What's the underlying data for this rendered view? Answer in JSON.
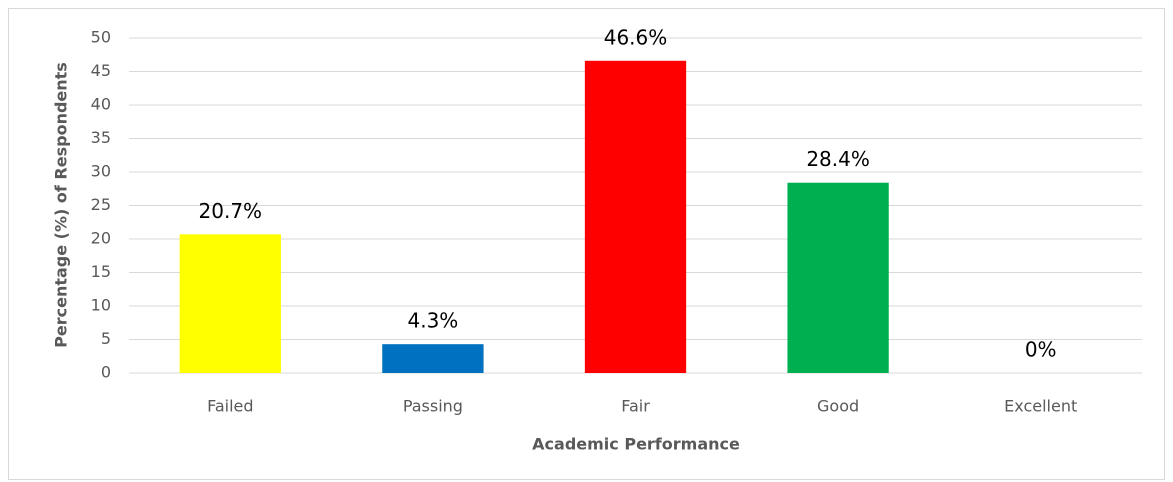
{
  "chart_data": {
    "type": "bar",
    "categories": [
      "Failed",
      "Passing",
      "Fair",
      "Good",
      "Excellent"
    ],
    "values": [
      20.7,
      4.3,
      46.6,
      28.4,
      0
    ],
    "value_labels": [
      "20.7%",
      "4.3%",
      "46.6%",
      "28.4%",
      "0%"
    ],
    "colors": [
      "#ffff00",
      "#0070c0",
      "#ff0000",
      "#00b050",
      "#7f7f7f"
    ],
    "xlabel": "Academic Performance",
    "ylabel": "Percentage (%) of Respondents",
    "ylim": [
      0,
      50
    ],
    "yticks": [
      0,
      5,
      10,
      15,
      20,
      25,
      30,
      35,
      40,
      45,
      50
    ],
    "grid": true
  }
}
